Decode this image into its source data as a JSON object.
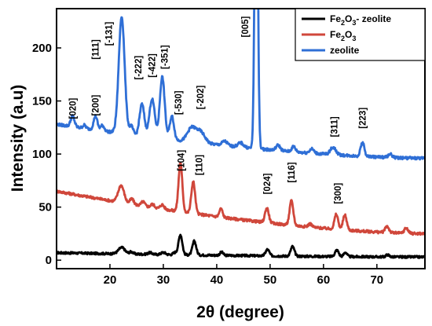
{
  "chart_data": {
    "type": "line",
    "xlabel": "2θ (degree)",
    "ylabel": "Intensity (a.u)",
    "xlim": [
      10,
      79
    ],
    "ylim": [
      -8,
      237
    ],
    "xticks": [
      "20",
      "30",
      "40",
      "50",
      "60",
      "70"
    ],
    "xtick_values": [
      20,
      30,
      40,
      50,
      60,
      70
    ],
    "yticks": [
      "0",
      "50",
      "100",
      "150",
      "200"
    ],
    "ytick_values": [
      0,
      50,
      100,
      150,
      200
    ],
    "legend_position": "top-right",
    "series": [
      {
        "name": "Fe2O3- zeolite",
        "legend_main": "Fe",
        "legend_sub1": "2",
        "legend_mid": "O",
        "legend_sub2": "3",
        "legend_tail": "- zeolite",
        "color": "#000000",
        "baseline_start": 7,
        "baseline_end": 3,
        "noise": 1.0,
        "peaks": [
          {
            "x": 22.2,
            "h": 6,
            "w": 0.6
          },
          {
            "x": 24.0,
            "h": 2,
            "w": 0.35
          },
          {
            "x": 27.5,
            "h": 1.5,
            "w": 0.4
          },
          {
            "x": 30.0,
            "h": 2,
            "w": 0.4
          },
          {
            "x": 32.2,
            "h": 2,
            "w": 0.35
          },
          {
            "x": 33.2,
            "h": 19,
            "w": 0.35
          },
          {
            "x": 35.8,
            "h": 13,
            "w": 0.35
          },
          {
            "x": 40.9,
            "h": 3,
            "w": 0.3
          },
          {
            "x": 49.5,
            "h": 6,
            "w": 0.35
          },
          {
            "x": 54.2,
            "h": 9,
            "w": 0.35
          },
          {
            "x": 62.5,
            "h": 6,
            "w": 0.35
          },
          {
            "x": 64.1,
            "h": 4,
            "w": 0.3
          },
          {
            "x": 72.0,
            "h": 2,
            "w": 0.3
          }
        ]
      },
      {
        "name": "Fe2O3",
        "legend_main": "Fe",
        "legend_sub1": "2",
        "legend_mid": "O",
        "legend_sub2": "3",
        "legend_tail": "",
        "color": "#d0473b",
        "baseline_start": 65,
        "baseline_end": 25,
        "noise": 1.2,
        "peaks": [
          {
            "x": 22.1,
            "h": 16,
            "w": 0.55
          },
          {
            "x": 24.1,
            "h": 5,
            "w": 0.35
          },
          {
            "x": 26.2,
            "h": 4,
            "w": 0.35
          },
          {
            "x": 28.0,
            "h": 3,
            "w": 0.35
          },
          {
            "x": 29.8,
            "h": 4,
            "w": 0.35
          },
          {
            "x": 33.2,
            "h": 46,
            "w": 0.35
          },
          {
            "x": 35.6,
            "h": 30,
            "w": 0.35
          },
          {
            "x": 40.8,
            "h": 8,
            "w": 0.3
          },
          {
            "x": 49.4,
            "h": 14,
            "w": 0.35
          },
          {
            "x": 54.0,
            "h": 23,
            "w": 0.35
          },
          {
            "x": 57.5,
            "h": 3,
            "w": 0.35
          },
          {
            "x": 62.4,
            "h": 14,
            "w": 0.35
          },
          {
            "x": 64.0,
            "h": 14,
            "w": 0.35
          },
          {
            "x": 71.9,
            "h": 6,
            "w": 0.35
          },
          {
            "x": 75.5,
            "h": 5,
            "w": 0.35
          }
        ]
      },
      {
        "name": "zeolite",
        "legend_main": "zeolite",
        "legend_sub1": "",
        "legend_mid": "",
        "legend_sub2": "",
        "legend_tail": "",
        "color": "#2f6fd6",
        "baseline_start": 128,
        "baseline_end": 96,
        "noise": 1.3,
        "peaks": [
          {
            "x": 13.0,
            "h": 10,
            "w": 0.35
          },
          {
            "x": 15.2,
            "h": 3,
            "w": 0.3
          },
          {
            "x": 17.3,
            "h": 13,
            "w": 0.35
          },
          {
            "x": 18.6,
            "h": 5,
            "w": 0.35
          },
          {
            "x": 22.2,
            "h": 110,
            "w": 0.55
          },
          {
            "x": 24.0,
            "h": 8,
            "w": 0.35
          },
          {
            "x": 26.0,
            "h": 30,
            "w": 0.45
          },
          {
            "x": 27.9,
            "h": 36,
            "w": 0.5
          },
          {
            "x": 29.8,
            "h": 58,
            "w": 0.45
          },
          {
            "x": 31.6,
            "h": 22,
            "w": 0.4
          },
          {
            "x": 35.3,
            "h": 13,
            "w": 0.8
          },
          {
            "x": 37.0,
            "h": 10,
            "w": 0.8
          },
          {
            "x": 41.5,
            "h": 4,
            "w": 0.5
          },
          {
            "x": 44.5,
            "h": 4,
            "w": 0.5
          },
          {
            "x": 47.4,
            "h": 340,
            "w": 0.28
          },
          {
            "x": 51.5,
            "h": 5,
            "w": 0.4
          },
          {
            "x": 54.4,
            "h": 5,
            "w": 0.35
          },
          {
            "x": 57.8,
            "h": 4,
            "w": 0.4
          },
          {
            "x": 61.8,
            "h": 7,
            "w": 0.5
          },
          {
            "x": 67.3,
            "h": 13,
            "w": 0.35
          },
          {
            "x": 72.5,
            "h": 3,
            "w": 0.4
          }
        ]
      }
    ],
    "annotations": [
      {
        "text": "[020]",
        "x": 13.0,
        "y": 133
      },
      {
        "text": "[200]",
        "x": 17.3,
        "y": 136
      },
      {
        "text": "[111]",
        "x": 17.3,
        "y": 189
      },
      {
        "text": "[-131]",
        "x": 19.8,
        "y": 202
      },
      {
        "text": "[-222]",
        "x": 25.3,
        "y": 170
      },
      {
        "text": "[-422]",
        "x": 27.9,
        "y": 172
      },
      {
        "text": "[-351]",
        "x": 30.2,
        "y": 180
      },
      {
        "text": "[-530]",
        "x": 32.8,
        "y": 137
      },
      {
        "text": "[-202]",
        "x": 36.9,
        "y": 142
      },
      {
        "text": "[005]",
        "x": 45.3,
        "y": 210
      },
      {
        "text": "[104]",
        "x": 33.3,
        "y": 84
      },
      {
        "text": "[110]",
        "x": 36.7,
        "y": 80
      },
      {
        "text": "[024]",
        "x": 49.4,
        "y": 62
      },
      {
        "text": "[116]",
        "x": 54.0,
        "y": 73
      },
      {
        "text": "[300]",
        "x": 62.7,
        "y": 53
      },
      {
        "text": "[311]",
        "x": 62.0,
        "y": 116
      },
      {
        "text": "[223]",
        "x": 67.3,
        "y": 124
      }
    ]
  }
}
